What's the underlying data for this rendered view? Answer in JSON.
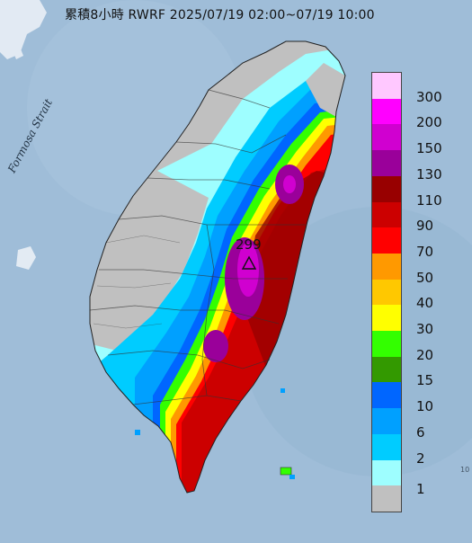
{
  "title": "累積8小時 RWRF 2025/07/19 02:00~07/19 10:00",
  "strait_label": "Formosa Strait",
  "peak_value": "299",
  "corner_text": "10",
  "legend": [
    {
      "label": "300",
      "color": "#ffc8ff"
    },
    {
      "label": "200",
      "color": "#ff00ff"
    },
    {
      "label": "150",
      "color": "#d000d0"
    },
    {
      "label": "130",
      "color": "#9a009a"
    },
    {
      "label": "110",
      "color": "#980000"
    },
    {
      "label": "90",
      "color": "#cc0000"
    },
    {
      "label": "70",
      "color": "#ff0000"
    },
    {
      "label": "50",
      "color": "#ff9900"
    },
    {
      "label": "40",
      "color": "#ffc800"
    },
    {
      "label": "30",
      "color": "#ffff00"
    },
    {
      "label": "20",
      "color": "#33ff00"
    },
    {
      "label": "15",
      "color": "#339900"
    },
    {
      "label": "10",
      "color": "#0066ff"
    },
    {
      "label": "6",
      "color": "#00a0ff"
    },
    {
      "label": "2",
      "color": "#00ccff"
    },
    {
      "label": "1",
      "color": "#9efeff"
    },
    {
      "label": "",
      "color": "#c0c0c0"
    }
  ]
}
